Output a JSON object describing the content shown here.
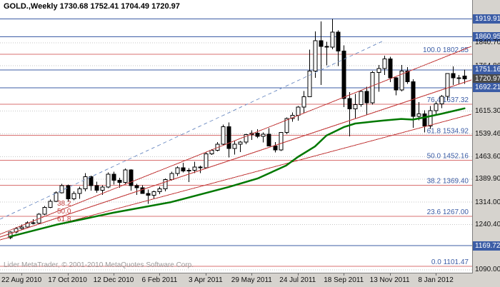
{
  "header": {
    "ohlc_line": "GOLD.,Weekly 1730.68 1752.41 1704.49 1720.97"
  },
  "footer": {
    "copyright": "Lider MetaTrader, © 2001-2010 MetaQuotes Software Corp."
  },
  "colors": {
    "plot_bg": "#ffffff",
    "frame_bg": "#d6d3ce",
    "grid": "#c6c6c6",
    "candle_up_fill": "#ffffff",
    "candle_down_fill": "#000000",
    "candle_border": "#000000",
    "ma_line": "#007800",
    "hline_blue": "#3c5da6",
    "current_price_badge": "#4a4a4a",
    "fib_line": "#d97070",
    "fib_label": "#3c5da6",
    "fan_line": "#c23b3b",
    "trendline_dashed": "#7a96c8",
    "axis_text": "#111111"
  },
  "chart_data": {
    "type": "candlestick",
    "title": "GOLD., Weekly",
    "symbol": "GOLD.",
    "timeframe": "Weekly",
    "last_bar": {
      "open": 1730.68,
      "high": 1752.41,
      "low": 1704.49,
      "close": 1720.97
    },
    "ylim": [
      1085,
      1935
    ],
    "grid": "horizontal-dotted",
    "legend": "none",
    "y_axis": [
      {
        "label": "1919.91",
        "value": 1919.91,
        "style": "hline"
      },
      {
        "label": "1860.95",
        "value": 1860.95,
        "style": "hline"
      },
      {
        "label": "1840.70",
        "value": 1840.7,
        "style": "tick"
      },
      {
        "label": "1764.86",
        "value": 1764.86,
        "style": "tick"
      },
      {
        "label": "1751.16",
        "value": 1751.16,
        "style": "hline"
      },
      {
        "label": "1720.97",
        "value": 1720.97,
        "style": "current"
      },
      {
        "label": "1692.21",
        "value": 1692.21,
        "style": "hline"
      },
      {
        "label": "1615.30",
        "value": 1615.3,
        "style": "tick"
      },
      {
        "label": "1539.46",
        "value": 1539.46,
        "style": "tick"
      },
      {
        "label": "1463.60",
        "value": 1463.6,
        "style": "tick"
      },
      {
        "label": "1389.90",
        "value": 1389.9,
        "style": "tick"
      },
      {
        "label": "1314.00",
        "value": 1314.0,
        "style": "tick"
      },
      {
        "label": "1240.40",
        "value": 1240.4,
        "style": "tick"
      },
      {
        "label": "1169.72",
        "value": 1169.72,
        "style": "hline"
      },
      {
        "label": "1090.00",
        "value": 1090.0,
        "style": "tick"
      }
    ],
    "x_ticks": [
      {
        "label": "22 Aug 2010",
        "index": 2
      },
      {
        "label": "17 Oct 2010",
        "index": 10
      },
      {
        "label": "12 Dec 2010",
        "index": 18
      },
      {
        "label": "6 Feb 2011",
        "index": 26
      },
      {
        "label": "3 Apr 2011",
        "index": 34
      },
      {
        "label": "29 May 2011",
        "index": 42
      },
      {
        "label": "24 Jul 2011",
        "index": 50
      },
      {
        "label": "18 Sep 2011",
        "index": 58
      },
      {
        "label": "13 Nov 2011",
        "index": 66
      },
      {
        "label": "8 Jan 2012",
        "index": 74
      }
    ],
    "candles_ohlc": [
      [
        1196,
        1218,
        1192,
        1215
      ],
      [
        1215,
        1232,
        1210,
        1227
      ],
      [
        1227,
        1240,
        1222,
        1232
      ],
      [
        1232,
        1250,
        1229,
        1246
      ],
      [
        1246,
        1258,
        1240,
        1245
      ],
      [
        1245,
        1278,
        1243,
        1274
      ],
      [
        1274,
        1301,
        1271,
        1297
      ],
      [
        1297,
        1322,
        1294,
        1317
      ],
      [
        1317,
        1350,
        1314,
        1345
      ],
      [
        1345,
        1375,
        1342,
        1368
      ],
      [
        1368,
        1372,
        1315,
        1325
      ],
      [
        1325,
        1350,
        1320,
        1342
      ],
      [
        1342,
        1365,
        1325,
        1358
      ],
      [
        1358,
        1410,
        1350,
        1398
      ],
      [
        1398,
        1402,
        1352,
        1369
      ],
      [
        1369,
        1382,
        1345,
        1353
      ],
      [
        1353,
        1370,
        1338,
        1364
      ],
      [
        1364,
        1412,
        1360,
        1406
      ],
      [
        1406,
        1415,
        1372,
        1386
      ],
      [
        1386,
        1394,
        1362,
        1379
      ],
      [
        1379,
        1425,
        1375,
        1421
      ],
      [
        1421,
        1423,
        1352,
        1368
      ],
      [
        1368,
        1375,
        1338,
        1361
      ],
      [
        1361,
        1370,
        1342,
        1343
      ],
      [
        1343,
        1355,
        1308,
        1337
      ],
      [
        1337,
        1352,
        1325,
        1349
      ],
      [
        1349,
        1365,
        1340,
        1358
      ],
      [
        1358,
        1392,
        1350,
        1389
      ],
      [
        1389,
        1415,
        1385,
        1409
      ],
      [
        1409,
        1432,
        1400,
        1428
      ],
      [
        1428,
        1444,
        1412,
        1417
      ],
      [
        1417,
        1426,
        1380,
        1419
      ],
      [
        1419,
        1448,
        1410,
        1430
      ],
      [
        1430,
        1435,
        1410,
        1428
      ],
      [
        1428,
        1478,
        1425,
        1474
      ],
      [
        1474,
        1489,
        1470,
        1486
      ],
      [
        1486,
        1512,
        1482,
        1505
      ],
      [
        1505,
        1570,
        1502,
        1563
      ],
      [
        1563,
        1577,
        1462,
        1491
      ],
      [
        1491,
        1518,
        1471,
        1506
      ],
      [
        1506,
        1516,
        1480,
        1512
      ],
      [
        1512,
        1540,
        1505,
        1537
      ],
      [
        1537,
        1552,
        1520,
        1542
      ],
      [
        1542,
        1555,
        1526,
        1532
      ],
      [
        1532,
        1545,
        1511,
        1539
      ],
      [
        1539,
        1559,
        1498,
        1500
      ],
      [
        1500,
        1512,
        1478,
        1487
      ],
      [
        1487,
        1546,
        1483,
        1544
      ],
      [
        1544,
        1594,
        1538,
        1590
      ],
      [
        1590,
        1610,
        1580,
        1601
      ],
      [
        1601,
        1632,
        1583,
        1628
      ],
      [
        1628,
        1681,
        1608,
        1663
      ],
      [
        1663,
        1818,
        1661,
        1747
      ],
      [
        1747,
        1878,
        1725,
        1848
      ],
      [
        1848,
        1911,
        1702,
        1829
      ],
      [
        1829,
        1844,
        1766,
        1826
      ],
      [
        1826,
        1919.91,
        1820,
        1876
      ],
      [
        1876,
        1882,
        1764,
        1814
      ],
      [
        1814,
        1832,
        1628,
        1657
      ],
      [
        1657,
        1678,
        1532,
        1622
      ],
      [
        1622,
        1672,
        1590,
        1637
      ],
      [
        1637,
        1685,
        1630,
        1680
      ],
      [
        1680,
        1696,
        1604,
        1642
      ],
      [
        1642,
        1748,
        1636,
        1743
      ],
      [
        1743,
        1767,
        1679,
        1756
      ],
      [
        1756,
        1798,
        1735,
        1788
      ],
      [
        1788,
        1795,
        1711,
        1725
      ],
      [
        1725,
        1727,
        1667,
        1685
      ],
      [
        1685,
        1767,
        1680,
        1747
      ],
      [
        1747,
        1761,
        1705,
        1712
      ],
      [
        1712,
        1720,
        1560,
        1598
      ],
      [
        1598,
        1645,
        1585,
        1606
      ],
      [
        1606,
        1618,
        1545,
        1566
      ],
      [
        1566,
        1632,
        1556,
        1616
      ],
      [
        1616,
        1647,
        1605,
        1639
      ],
      [
        1639,
        1668,
        1625,
        1664
      ],
      [
        1664,
        1740,
        1651,
        1739
      ],
      [
        1739,
        1763,
        1702,
        1725
      ],
      [
        1725,
        1735,
        1704,
        1723
      ],
      [
        1730.68,
        1752.41,
        1704.49,
        1720.97
      ]
    ],
    "ma_points": [
      [
        0,
        1200
      ],
      [
        8,
        1239
      ],
      [
        18,
        1279
      ],
      [
        28,
        1314
      ],
      [
        38,
        1364
      ],
      [
        43,
        1392
      ],
      [
        48,
        1435
      ],
      [
        50,
        1463
      ],
      [
        53,
        1498
      ],
      [
        55,
        1534
      ],
      [
        58,
        1562
      ],
      [
        60,
        1574
      ],
      [
        63,
        1580
      ],
      [
        65,
        1584
      ],
      [
        68,
        1589
      ],
      [
        70,
        1587
      ],
      [
        72,
        1594
      ],
      [
        75,
        1606
      ],
      [
        79,
        1624
      ]
    ],
    "horizontal_lines": [
      1919.91,
      1860.95,
      1751.16,
      1692.21,
      1169.72
    ],
    "fibonacci_retracement": {
      "levels": [
        {
          "label": "100.0 1802.85",
          "pct": "100.0",
          "price": 1802.85
        },
        {
          "label": "76.4 1637.32",
          "pct": "76.4",
          "price": 1637.32
        },
        {
          "label": "61.8 1534.92",
          "pct": "61.8",
          "price": 1534.92
        },
        {
          "label": "50.0 1452.16",
          "pct": "50.0",
          "price": 1452.16
        },
        {
          "label": "38.2 1369.40",
          "pct": "38.2",
          "price": 1369.4
        },
        {
          "label": "23.6 1267.00",
          "pct": "23.6",
          "price": 1267.0
        },
        {
          "label": "0.0 1101.47",
          "pct": "0.0",
          "price": 1101.47
        }
      ]
    },
    "fibonacci_fan_labels": [
      "38.2",
      "50.0",
      "61.8"
    ]
  }
}
